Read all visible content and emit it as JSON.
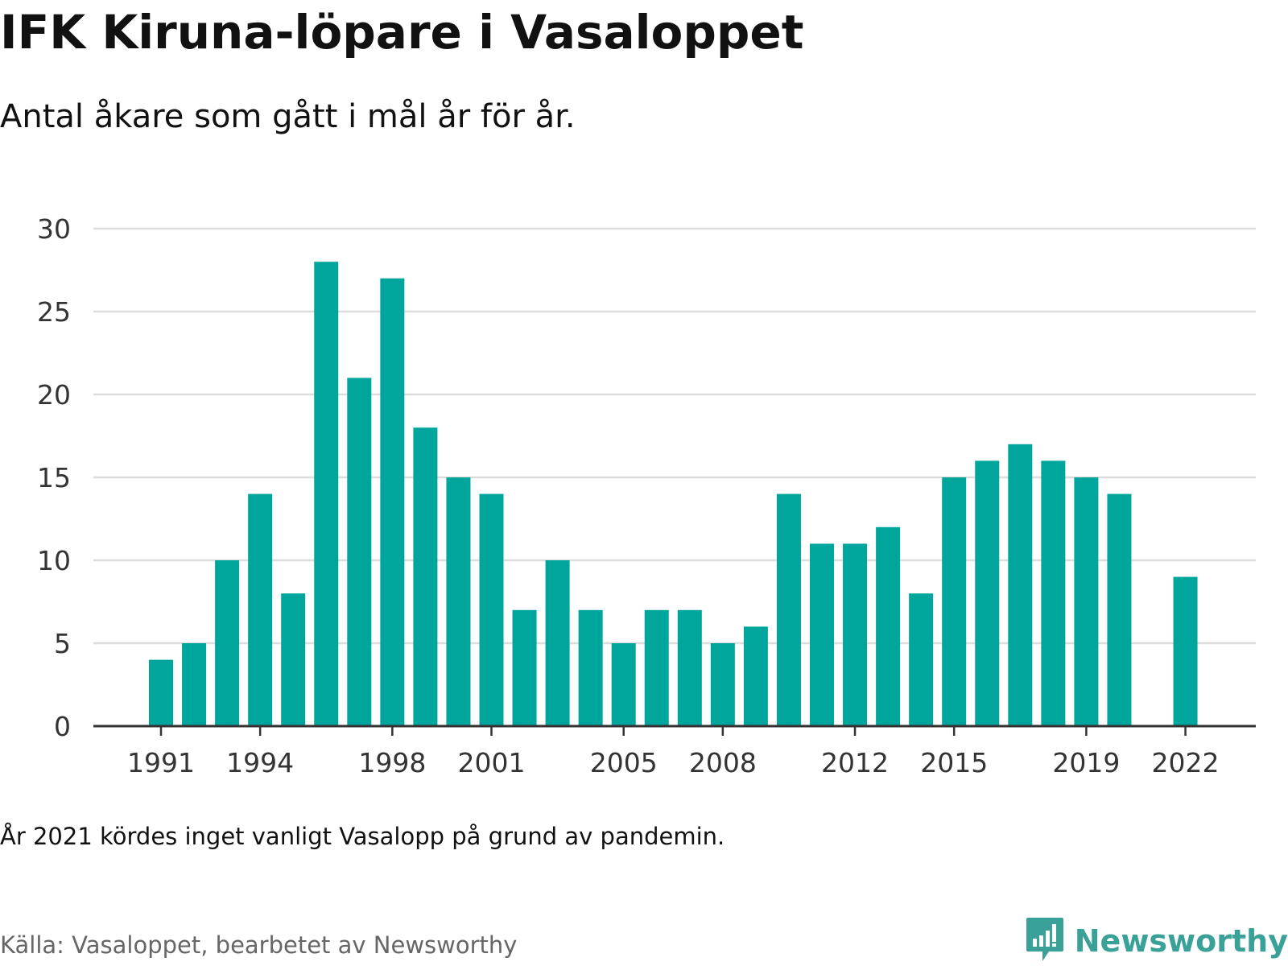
{
  "header": {
    "title": "IFK Kiruna-löpare i Vasaloppet",
    "subtitle": "Antal åkare som gått i mål år för år."
  },
  "footer": {
    "note": "År 2021 kördes inget vanligt Vasalopp på grund av pandemin.",
    "source": "Källa: Vasaloppet, bearbetet av Newsworthy",
    "brand": "Newsworthy",
    "brand_icon": "bar-chart-speech-bubble-icon"
  },
  "colors": {
    "bar": "#00a69c",
    "grid": "#dddddd",
    "axis": "#333333",
    "brand": "#3aa199"
  },
  "chart_data": {
    "type": "bar",
    "title": "IFK Kiruna-löpare i Vasaloppet",
    "subtitle": "Antal åkare som gått i mål år för år.",
    "xlabel": "",
    "ylabel": "",
    "ylim": [
      0,
      30
    ],
    "yticks": [
      0,
      5,
      10,
      15,
      20,
      25,
      30
    ],
    "xticks": [
      1991,
      1994,
      1998,
      2001,
      2005,
      2008,
      2012,
      2015,
      2019,
      2022
    ],
    "grid": true,
    "legend": "none",
    "categories": [
      1991,
      1992,
      1993,
      1994,
      1995,
      1996,
      1997,
      1998,
      1999,
      2000,
      2001,
      2002,
      2003,
      2004,
      2005,
      2006,
      2007,
      2008,
      2009,
      2010,
      2011,
      2012,
      2013,
      2014,
      2015,
      2016,
      2017,
      2018,
      2019,
      2020,
      2021,
      2022
    ],
    "values": [
      4,
      5,
      10,
      14,
      8,
      28,
      21,
      27,
      18,
      15,
      14,
      7,
      10,
      7,
      5,
      7,
      7,
      5,
      6,
      14,
      11,
      11,
      12,
      8,
      15,
      16,
      17,
      16,
      15,
      14,
      null,
      9
    ]
  }
}
